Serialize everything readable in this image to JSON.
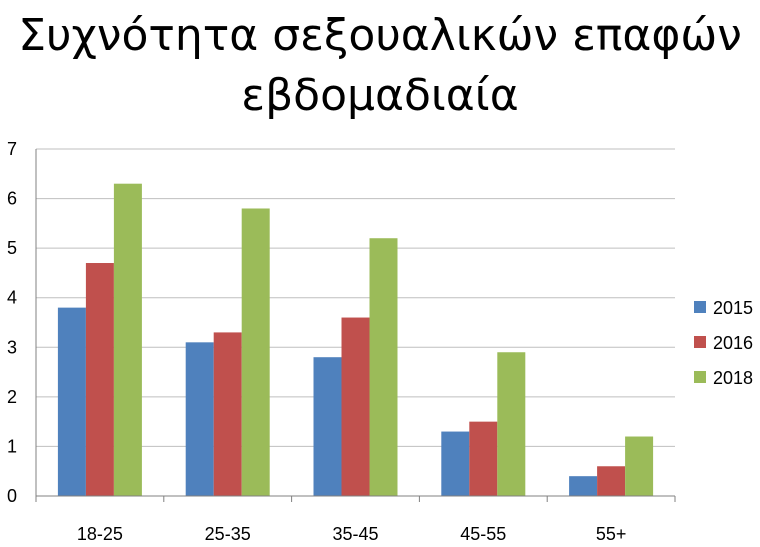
{
  "chart_data": {
    "type": "bar",
    "title_lines": [
      "Συχνότητα σεξουαλικών επαφών",
      "εβδομαδιαία"
    ],
    "xlabel": "",
    "ylabel": "",
    "categories": [
      "18-25",
      "25-35",
      "35-45",
      "45-55",
      "55+"
    ],
    "series": [
      {
        "name": "2015",
        "color": "#4F81BD",
        "values": [
          3.8,
          3.1,
          2.8,
          1.3,
          0.4
        ]
      },
      {
        "name": "2016",
        "color": "#C0504D",
        "values": [
          4.7,
          3.3,
          3.6,
          1.5,
          0.6
        ]
      },
      {
        "name": "2018",
        "color": "#9BBB59",
        "values": [
          6.3,
          5.8,
          5.2,
          2.9,
          1.2
        ]
      }
    ],
    "ylim": [
      0,
      7
    ],
    "yticks": [
      0,
      1,
      2,
      3,
      4,
      5,
      6,
      7
    ],
    "grid": true,
    "legend_position": "right"
  }
}
